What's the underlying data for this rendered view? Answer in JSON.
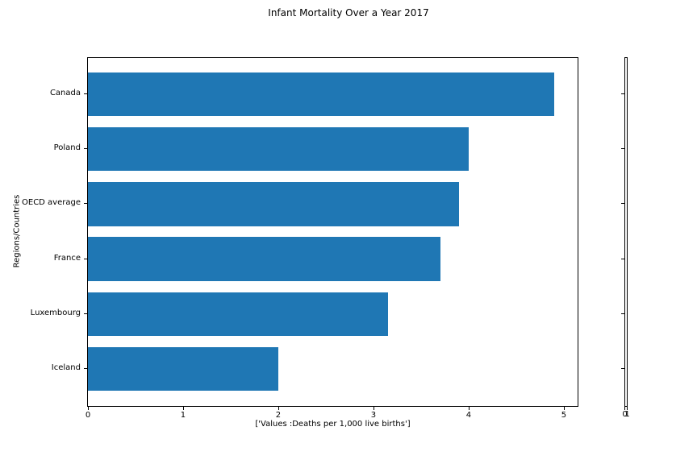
{
  "chart_data": {
    "type": "bar",
    "orientation": "horizontal",
    "title": "Infant Mortality Over a Year 2017",
    "categories": [
      "Canada",
      "Poland",
      "OECD average",
      "France",
      "Luxembourg",
      "Iceland"
    ],
    "values": [
      4.9,
      4.0,
      3.9,
      3.7,
      3.15,
      2.0
    ],
    "xlabel": "['Values :Deaths per 1,000 live births']",
    "ylabel": "Regions/Countries",
    "xlim": [
      0,
      5.145
    ],
    "x_ticks": [
      "0",
      "1",
      "2",
      "3",
      "4",
      "5"
    ],
    "bar_color": "#1f77b4",
    "grid": false,
    "legend": false,
    "secondary_axis": {
      "x_tick_labels": [
        "0",
        "1"
      ]
    }
  }
}
